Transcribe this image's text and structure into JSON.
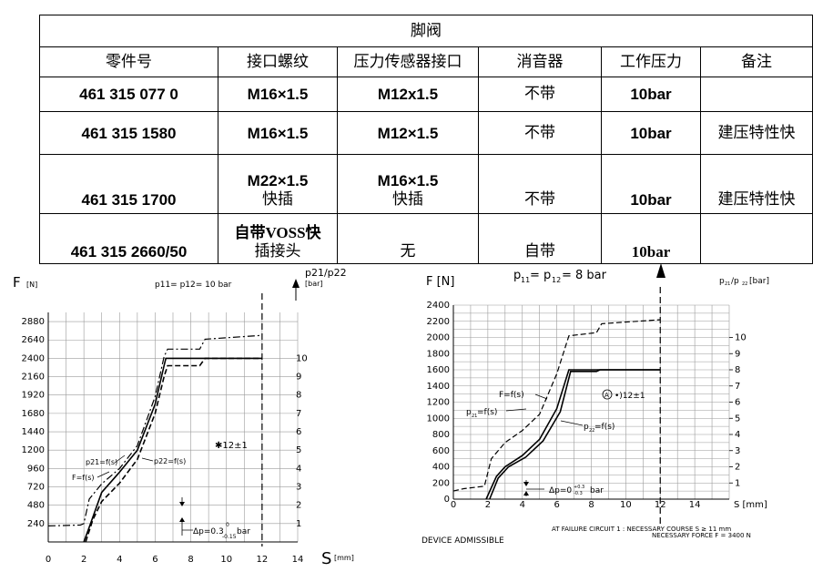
{
  "table": {
    "title": "脚阀",
    "headers": [
      "零件号",
      "接口螺纹",
      "压力传感器接口",
      "消音器",
      "工作压力",
      "备注"
    ],
    "rows": [
      {
        "part": "461 315 077 0",
        "thread": "M16×1.5",
        "thread2": "",
        "sensor": "M12x1.5",
        "sensor2": "",
        "muffler": "不带",
        "pressure": "10bar",
        "note": ""
      },
      {
        "part": "461 315 1580",
        "thread": "M16×1.5",
        "thread2": "",
        "sensor": "M12×1.5",
        "sensor2": "",
        "muffler": "不带",
        "pressure": "10bar",
        "note": "建压特性快"
      },
      {
        "part": "461 315 1700",
        "thread": "M22×1.5",
        "thread2": "快插",
        "sensor": "M16×1.5",
        "sensor2": "快插",
        "muffler": "不带",
        "pressure": "10bar",
        "note": "建压特性快"
      },
      {
        "part": "461 315 2660/50",
        "thread": "自带VOSS快",
        "thread2": "插接头",
        "sensor": "无",
        "sensor2": "",
        "muffler": "自带",
        "pressure": "10bar",
        "note": ""
      }
    ]
  },
  "chart_data": [
    {
      "type": "line",
      "title": "p11= p12= 10 bar",
      "ylabel": "F",
      "ylabel_unit": "[N]",
      "y2label": "p21/p22",
      "y2label_unit": "[bar]",
      "xlabel": "S",
      "xlabel_unit": "[mm]",
      "xlim": [
        0,
        14
      ],
      "ylim": [
        0,
        3000
      ],
      "y2lim": [
        0,
        12.5
      ],
      "x_ticks": [
        "0",
        "2",
        "4",
        "6",
        "8",
        "10",
        "12",
        "14"
      ],
      "y_ticks": [
        "240",
        "480",
        "720",
        "960",
        "1200",
        "1440",
        "1680",
        "1920",
        "2160",
        "2400",
        "2640",
        "2880"
      ],
      "y2_ticks": [
        "1",
        "2",
        "3",
        "4",
        "5",
        "6",
        "7",
        "8",
        "9",
        "10"
      ],
      "failure_x": 12,
      "annotations": {
        "note": "✱12±1",
        "p21": "p21=f(s)",
        "p22": "p22=f(s)",
        "F": "F=f(s)",
        "dp_prefix": "Δp=0.3",
        "dp_sup": "0",
        "dp_sub": "-0.15",
        "dp_unit": "bar"
      },
      "series": [
        {
          "name": "F=f(s)",
          "style": "dashdot",
          "x": [
            0,
            1.8,
            2.0,
            2.3,
            3.0,
            4.0,
            5.0,
            6.0,
            6.5,
            6.7,
            8.5,
            8.8,
            12
          ],
          "y": [
            210,
            220,
            240,
            560,
            760,
            960,
            1260,
            1900,
            2420,
            2520,
            2520,
            2650,
            2700
          ]
        },
        {
          "name": "p21=f(s)",
          "style": "solid",
          "x": [
            2.0,
            2.3,
            3.0,
            4.0,
            5.0,
            6.0,
            6.5,
            6.6,
            12
          ],
          "y": [
            0,
            0.8,
            2.7,
            3.8,
            5.0,
            7.5,
            9.6,
            10.0,
            10.0
          ]
        },
        {
          "name": "p22=f(s)",
          "style": "dashed",
          "x": [
            2.1,
            2.5,
            3.0,
            4.0,
            5.0,
            6.0,
            6.5,
            6.7,
            8.5,
            8.8,
            12
          ],
          "y": [
            0,
            1.2,
            2.2,
            3.2,
            4.5,
            7.0,
            9.0,
            9.6,
            9.6,
            10.0,
            10.0
          ]
        }
      ]
    },
    {
      "type": "line",
      "title_prefix": "p",
      "title_sub1": "11",
      "title_eq": "= p",
      "title_sub2": "12",
      "title_suffix": "= 8 bar",
      "ylabel": "F [N]",
      "y2label_p1": "p",
      "y2label_sub1": "21",
      "y2label_p2": "/p",
      "y2label_sub2": "22",
      "y2label_unit": "[bar]",
      "xlabel": "S [mm]",
      "xlim": [
        0,
        16
      ],
      "ylim": [
        0,
        2400
      ],
      "y2lim": [
        0,
        12
      ],
      "x_ticks": [
        "0",
        "2",
        "4",
        "6",
        "8",
        "10",
        "12",
        "14"
      ],
      "y_ticks": [
        "0",
        "200",
        "400",
        "600",
        "800",
        "1000",
        "1200",
        "1400",
        "1600",
        "1800",
        "2000",
        "2200",
        "2400"
      ],
      "y2_ticks": [
        "1",
        "2",
        "3",
        "4",
        "5",
        "6",
        "7",
        "8",
        "9",
        "10"
      ],
      "failure_x": 12,
      "annotations": {
        "F": "F=f(s)",
        "p21": "p",
        "p21_sub": "21",
        "p21_tail": "=f(s)",
        "p22": "p",
        "p22_sub": "22",
        "p22_tail": "=f(s)",
        "marker": "A",
        "marker_text": "•)12±1",
        "dp_prefix": "Δp=0",
        "dp_sup": "+0.3",
        "dp_sub": "-0.3",
        "dp_unit": "bar",
        "failure_line1": "AT FAILURE CIRCUIT 1 : NECESSARY COURSE S ≥ 11 mm",
        "failure_line2": "NECESSARY FORCE F = 3400 N",
        "bottom_cut": "DEVICE ADMISSIBLE"
      },
      "series": [
        {
          "name": "F=f(s)",
          "style": "dashed",
          "x": [
            0,
            0.6,
            1.8,
            2.2,
            3.0,
            4.0,
            5.0,
            6.0,
            6.7,
            8.3,
            8.6,
            12
          ],
          "y": [
            100,
            130,
            160,
            500,
            700,
            850,
            1050,
            1550,
            2020,
            2060,
            2170,
            2220
          ]
        },
        {
          "name": "p21=f(s)",
          "style": "solid",
          "x": [
            1.9,
            2.5,
            3.0,
            4.0,
            5.0,
            6.0,
            6.7,
            12
          ],
          "y": [
            0,
            1.4,
            2.0,
            2.7,
            3.7,
            5.6,
            8.0,
            8.0
          ]
        },
        {
          "name": "p22=f(s)",
          "style": "solid",
          "x": [
            2.1,
            2.6,
            3.2,
            4.2,
            5.2,
            6.2,
            6.8,
            8.3,
            8.5,
            12
          ],
          "y": [
            0,
            1.3,
            2.0,
            2.6,
            3.6,
            5.4,
            7.9,
            7.9,
            8.0,
            8.0
          ]
        }
      ]
    }
  ]
}
